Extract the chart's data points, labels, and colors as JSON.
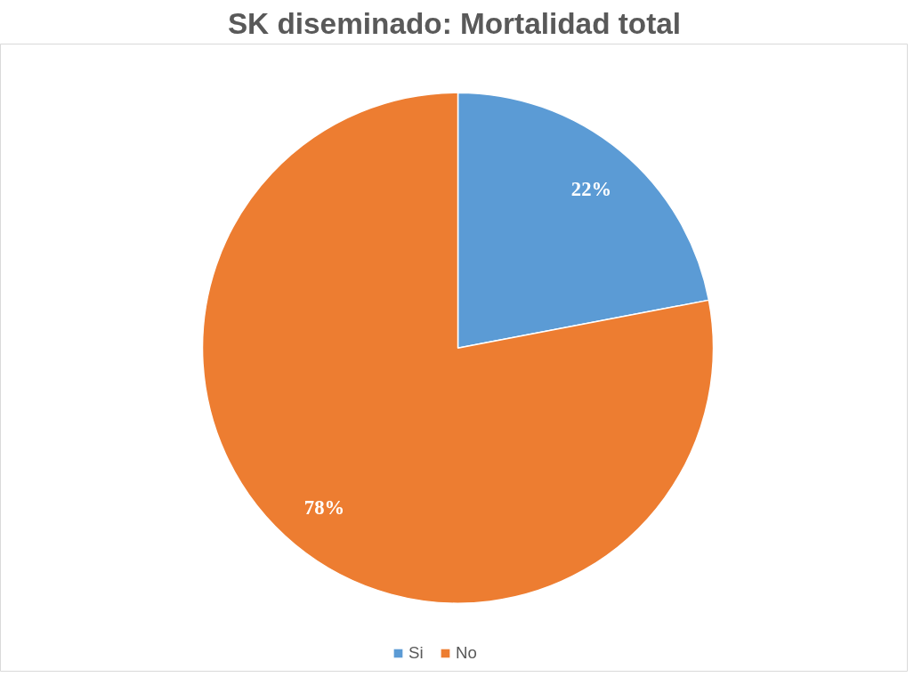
{
  "chart_data": {
    "type": "pie",
    "title": "SK diseminado: Mortalidad total",
    "categories": [
      "Si",
      "No"
    ],
    "values": [
      22,
      78
    ],
    "colors": [
      "#5b9bd5",
      "#ed7d31"
    ],
    "value_labels": [
      "22%",
      "78%"
    ],
    "legend": "bottom"
  }
}
